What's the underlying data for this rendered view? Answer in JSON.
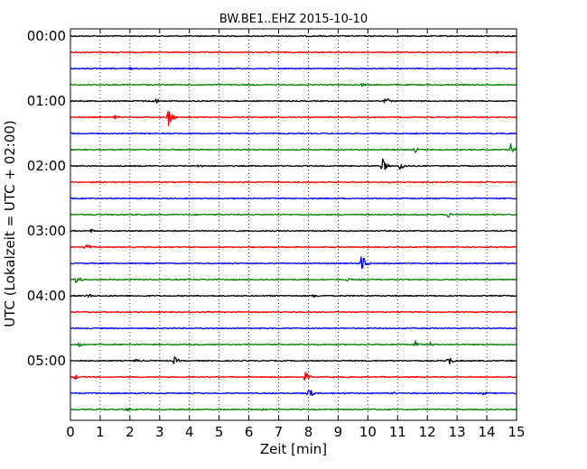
{
  "chart_data": {
    "type": "line",
    "title": "BW.BE1..EHZ 2015-10-10",
    "xlabel": "Zeit  [min]",
    "ylabel": "UTC (Lokalzeit = UTC + 02:00)",
    "xlim": [
      0,
      15
    ],
    "x_ticks": [
      "0",
      "1",
      "2",
      "3",
      "4",
      "5",
      "6",
      "7",
      "8",
      "9",
      "10",
      "11",
      "12",
      "13",
      "14",
      "15"
    ],
    "y_ticks": [
      "00:00",
      "01:00",
      "02:00",
      "03:00",
      "04:00",
      "05:00"
    ],
    "grid": "vertical-dotted",
    "line_interval_min": 15,
    "colors": [
      "#000000",
      "#ff0000",
      "#0000ff",
      "#008000"
    ],
    "traces": [
      {
        "start": "00:00",
        "color": "#000000",
        "events": []
      },
      {
        "start": "00:15",
        "color": "#ff0000",
        "events": [
          {
            "t": 14.3,
            "amp": 0.2
          }
        ]
      },
      {
        "start": "00:30",
        "color": "#0000ff",
        "events": [
          {
            "t": 2.0,
            "amp": 0.15
          }
        ]
      },
      {
        "start": "00:45",
        "color": "#008000",
        "events": [
          {
            "t": 9.8,
            "amp": 0.2
          }
        ]
      },
      {
        "start": "01:00",
        "color": "#000000",
        "events": [
          {
            "t": 2.8,
            "amp": 0.5
          },
          {
            "t": 10.6,
            "amp": 0.4
          }
        ]
      },
      {
        "start": "01:15",
        "color": "#ff0000",
        "events": [
          {
            "t": 3.3,
            "amp": 1.0
          },
          {
            "t": 1.5,
            "amp": 0.2
          }
        ]
      },
      {
        "start": "01:30",
        "color": "#0000ff",
        "events": []
      },
      {
        "start": "01:45",
        "color": "#008000",
        "events": [
          {
            "t": 11.6,
            "amp": 0.3
          },
          {
            "t": 14.8,
            "amp": 0.7
          }
        ]
      },
      {
        "start": "02:00",
        "color": "#000000",
        "events": [
          {
            "t": 4.3,
            "amp": 0.25
          },
          {
            "t": 10.5,
            "amp": 0.7
          },
          {
            "t": 11.1,
            "amp": 0.5
          }
        ]
      },
      {
        "start": "02:15",
        "color": "#ff0000",
        "events": []
      },
      {
        "start": "02:30",
        "color": "#0000ff",
        "events": []
      },
      {
        "start": "02:45",
        "color": "#008000",
        "events": [
          {
            "t": 12.7,
            "amp": 0.3
          }
        ]
      },
      {
        "start": "03:00",
        "color": "#000000",
        "events": [
          {
            "t": 0.7,
            "amp": 0.2
          }
        ]
      },
      {
        "start": "03:15",
        "color": "#ff0000",
        "events": [
          {
            "t": 0.5,
            "amp": 0.55
          }
        ]
      },
      {
        "start": "03:30",
        "color": "#0000ff",
        "events": [
          {
            "t": 9.8,
            "amp": 0.9
          }
        ]
      },
      {
        "start": "03:45",
        "color": "#008000",
        "events": [
          {
            "t": 0.2,
            "amp": 0.55
          },
          {
            "t": 9.3,
            "amp": 0.2
          }
        ]
      },
      {
        "start": "04:00",
        "color": "#000000",
        "events": [
          {
            "t": 0.6,
            "amp": 0.25
          },
          {
            "t": 8.2,
            "amp": 0.25
          }
        ]
      },
      {
        "start": "04:15",
        "color": "#ff0000",
        "events": []
      },
      {
        "start": "04:30",
        "color": "#0000ff",
        "events": []
      },
      {
        "start": "04:45",
        "color": "#008000",
        "events": [
          {
            "t": 0.3,
            "amp": 0.3
          },
          {
            "t": 11.6,
            "amp": 0.35
          },
          {
            "t": 12.1,
            "amp": 0.25
          }
        ]
      },
      {
        "start": "05:00",
        "color": "#000000",
        "events": [
          {
            "t": 2.2,
            "amp": 0.25
          },
          {
            "t": 3.5,
            "amp": 0.4
          },
          {
            "t": 12.7,
            "amp": 0.55
          }
        ]
      },
      {
        "start": "05:15",
        "color": "#ff0000",
        "events": [
          {
            "t": 0.15,
            "amp": 0.3
          },
          {
            "t": 7.9,
            "amp": 0.45
          }
        ]
      },
      {
        "start": "05:30",
        "color": "#0000ff",
        "events": [
          {
            "t": 8.0,
            "amp": 0.6
          },
          {
            "t": 10.9,
            "amp": 0.2
          },
          {
            "t": 13.9,
            "amp": 0.2
          }
        ]
      },
      {
        "start": "05:45",
        "color": "#008000",
        "events": [
          {
            "t": 1.9,
            "amp": 0.2
          },
          {
            "t": 6.4,
            "amp": 0.15
          }
        ]
      }
    ]
  }
}
